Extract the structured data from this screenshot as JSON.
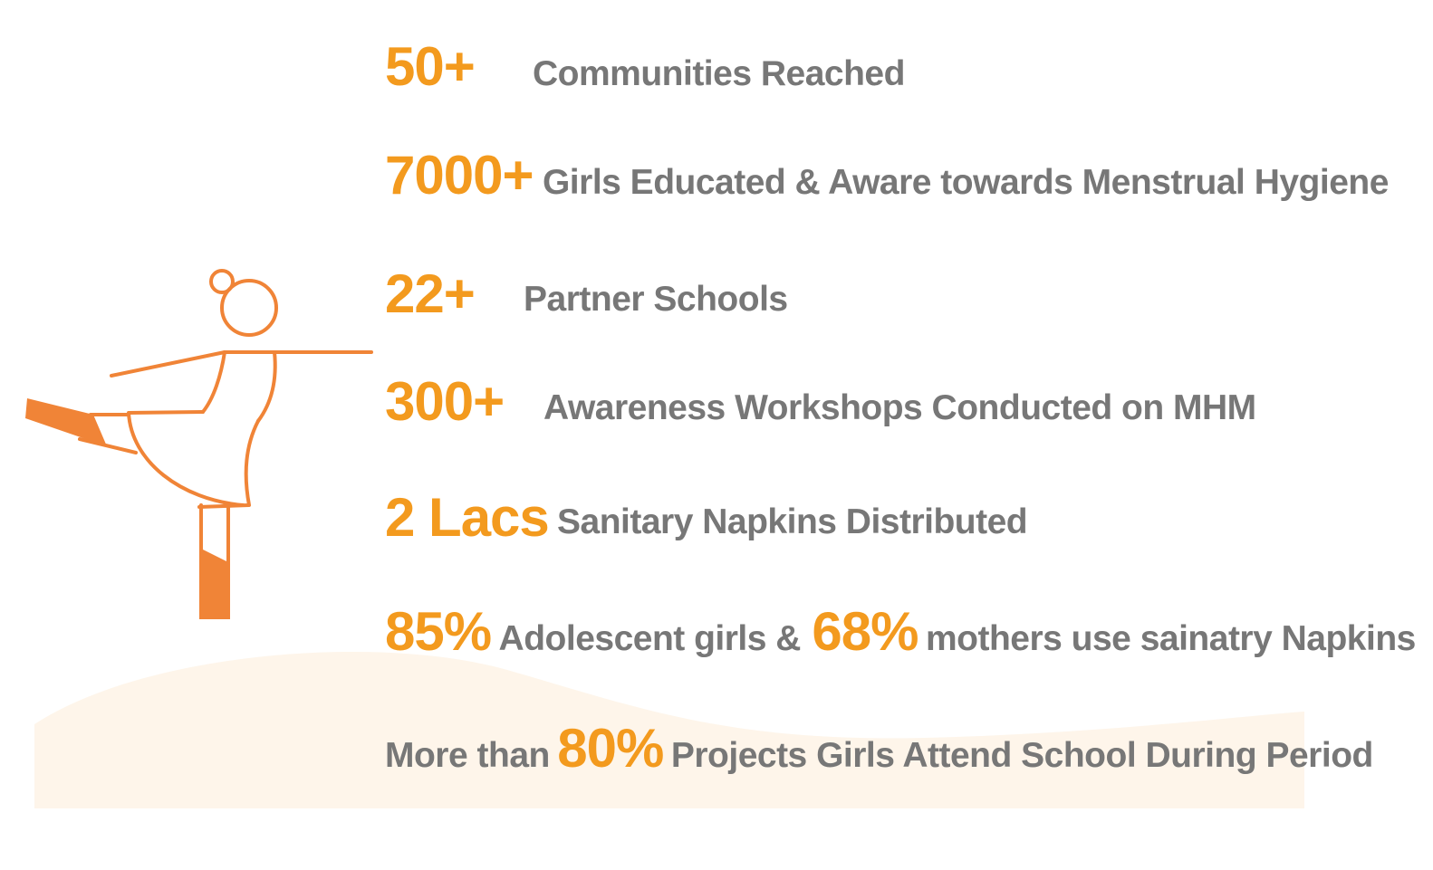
{
  "colors": {
    "accent": "#f39a1e",
    "figure": "#f08437",
    "text": "#777777",
    "wave": "#fef5ea"
  },
  "figure": {
    "icon": "dancing-girl-icon"
  },
  "stats": [
    {
      "value": "50+",
      "text": "Communities Reached"
    },
    {
      "value": "7000+",
      "text": "Girls Educated & Aware towards  Menstrual Hygiene"
    },
    {
      "value": "22+",
      "text": "Partner Schools"
    },
    {
      "value": "300+",
      "text": "Awareness Workshops Conducted on MHM"
    },
    {
      "value": "2 Lacs",
      "text": "Sanitary Napkins Distributed"
    },
    {
      "value": "85%",
      "text": "Adolescent girls &",
      "value2": "68%",
      "text2": "mothers use sainatry  Napkins"
    },
    {
      "prefix": "More than",
      "value": "80%",
      "text": "Projects Girls Attend School During Period"
    }
  ]
}
